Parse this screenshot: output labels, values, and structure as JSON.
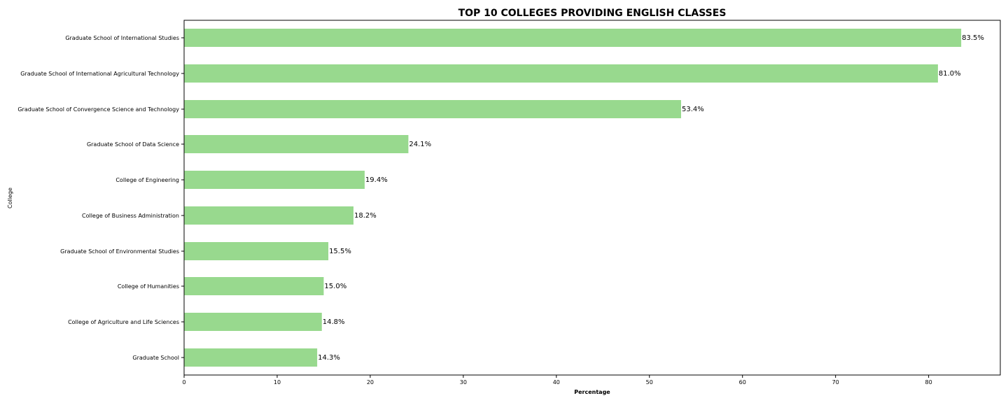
{
  "chart_data": {
    "type": "bar",
    "orientation": "horizontal",
    "title": "TOP 10 COLLEGES PROVIDING ENGLISH CLASSES",
    "xlabel": "Percentage",
    "ylabel": "College",
    "categories": [
      "Graduate School of International Studies",
      "Graduate School of International Agricultural Technology",
      "Graduate School of Convergence Science and Technology",
      "Graduate School of Data Science",
      "College of Engineering",
      "College of Business Administration",
      "Graduate School of Environmental Studies",
      "College of Humanities",
      "College of Agriculture and Life Sciences",
      "Graduate School"
    ],
    "values": [
      83.5,
      81.0,
      53.4,
      24.1,
      19.4,
      18.2,
      15.5,
      15.0,
      14.8,
      14.3
    ],
    "value_labels": [
      "83.5%",
      "81.0%",
      "53.4%",
      "24.1%",
      "19.4%",
      "18.2%",
      "15.5%",
      "15.0%",
      "14.8%",
      "14.3%"
    ],
    "xlim": [
      0,
      87.7
    ],
    "xticks": [
      0,
      10,
      20,
      30,
      40,
      50,
      60,
      70,
      80
    ],
    "xtick_labels": [
      "0",
      "10",
      "20",
      "30",
      "40",
      "50",
      "60",
      "70",
      "80"
    ],
    "grid": false,
    "legend": "none",
    "bar_color": "#98d98e"
  }
}
